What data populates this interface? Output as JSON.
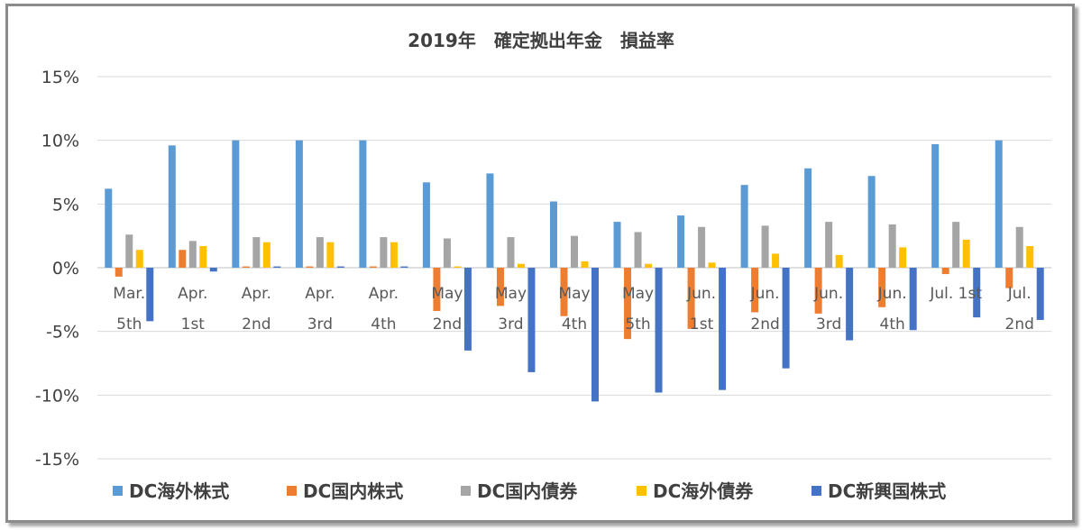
{
  "chart_data": {
    "type": "bar",
    "title": "2019年　確定拠出年金　損益率",
    "xlabel": "",
    "ylabel": "",
    "ylim": [
      -15,
      15
    ],
    "yticks": [
      15,
      10,
      5,
      0,
      -5,
      -10,
      -15
    ],
    "ytick_labels": [
      "15%",
      "10%",
      "5%",
      "0%",
      "-5%",
      "-10%",
      "-15%"
    ],
    "grid": true,
    "legend_position": "bottom",
    "categories": [
      [
        "Mar.",
        "5th"
      ],
      [
        "Apr.",
        "1st"
      ],
      [
        "Apr.",
        "2nd"
      ],
      [
        "Apr.",
        "3rd"
      ],
      [
        "Apr.",
        "4th"
      ],
      [
        "May",
        "2nd"
      ],
      [
        "May",
        "3rd"
      ],
      [
        "May",
        "4th"
      ],
      [
        "May",
        "5th"
      ],
      [
        "Jun.",
        "1st"
      ],
      [
        "Jun.",
        "2nd"
      ],
      [
        "Jun.",
        "3rd"
      ],
      [
        "Jun.",
        "4th"
      ],
      [
        "Jul.  1st",
        ""
      ],
      [
        "Jul.",
        "2nd"
      ]
    ],
    "series": [
      {
        "name": "DC海外株式",
        "color": "#5b9bd5",
        "values": [
          6.2,
          9.6,
          10.0,
          10.0,
          10.0,
          6.7,
          7.4,
          5.2,
          3.6,
          4.1,
          6.5,
          7.8,
          7.2,
          9.7,
          10.0
        ]
      },
      {
        "name": "DC国内株式",
        "color": "#ed7d31",
        "values": [
          -0.7,
          1.4,
          0.1,
          0.1,
          0.1,
          -3.4,
          -3.0,
          -3.8,
          -5.6,
          -4.8,
          -3.5,
          -3.6,
          -3.1,
          -0.5,
          -1.6
        ]
      },
      {
        "name": "DC国内債券",
        "color": "#a5a5a5",
        "values": [
          2.6,
          2.1,
          2.4,
          2.4,
          2.4,
          2.3,
          2.4,
          2.5,
          2.8,
          3.2,
          3.3,
          3.6,
          3.4,
          3.6,
          3.2
        ]
      },
      {
        "name": "DC海外債券",
        "color": "#ffc000",
        "values": [
          1.4,
          1.7,
          2.0,
          2.0,
          2.0,
          0.1,
          0.3,
          0.5,
          0.3,
          0.4,
          1.1,
          1.0,
          1.6,
          2.2,
          1.7
        ]
      },
      {
        "name": "DC新興国株式",
        "color": "#4472c4",
        "values": [
          -4.2,
          -0.3,
          0.1,
          0.1,
          0.1,
          -6.5,
          -8.2,
          -10.5,
          -9.8,
          -9.6,
          -7.9,
          -5.7,
          -4.9,
          -3.9,
          -4.1
        ]
      }
    ]
  }
}
